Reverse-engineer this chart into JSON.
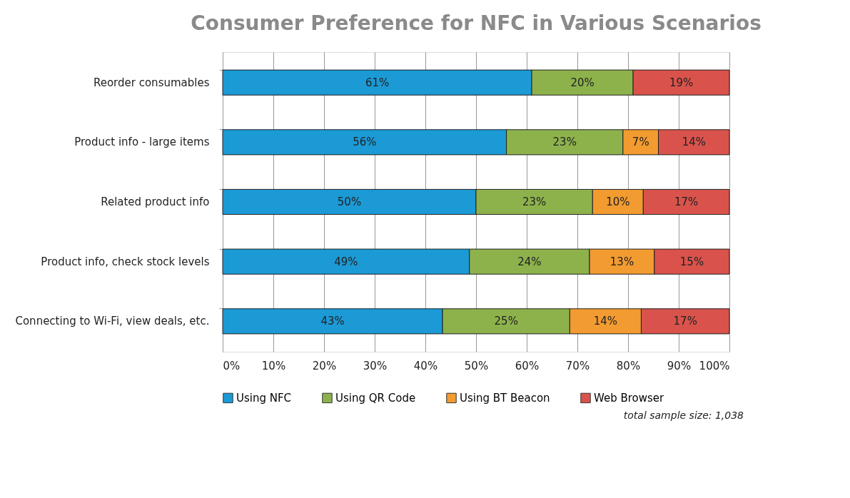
{
  "chart_data": {
    "type": "bar",
    "orientation": "horizontal",
    "stacked": true,
    "title": "Consumer Preference for NFC in Various Scenarios",
    "categories": [
      "Reorder consumables",
      "Product info - large items",
      "Related product info",
      "Product info, check stock levels",
      "Connecting to Wi-Fi, view deals, etc."
    ],
    "series": [
      {
        "name": "Using NFC",
        "color": "#1b9ad6",
        "values": [
          61,
          56,
          50,
          48.7,
          43.4
        ],
        "value_labels": [
          "61%",
          "56%",
          "50%",
          "49%",
          "43%"
        ]
      },
      {
        "name": "Using QR Code",
        "color": "#8db24c",
        "values": [
          20,
          23,
          23,
          23.7,
          25.1
        ],
        "value_labels": [
          "20%",
          "23%",
          "23%",
          "24%",
          "25%"
        ]
      },
      {
        "name": "Using BT Beacon",
        "color": "#f29b30",
        "values": [
          null,
          7,
          10,
          12.8,
          14.1
        ],
        "value_labels": [
          null,
          "7%",
          "10%",
          "13%",
          "14%"
        ]
      },
      {
        "name": "Web Browser",
        "color": "#d9534c",
        "values": [
          19,
          14,
          17,
          14.8,
          17.4
        ],
        "value_labels": [
          "19%",
          "14%",
          "17%",
          "15%",
          "17%"
        ]
      }
    ],
    "xlim": [
      0,
      100
    ],
    "xticks": [
      {
        "value": 0,
        "label": "0%"
      },
      {
        "value": 10,
        "label": "10%"
      },
      {
        "value": 20,
        "label": "20%"
      },
      {
        "value": 30,
        "label": "30%"
      },
      {
        "value": 40,
        "label": "40%"
      },
      {
        "value": 50,
        "label": "50%"
      },
      {
        "value": 60,
        "label": "60%"
      },
      {
        "value": 70,
        "label": "70%"
      },
      {
        "value": 80,
        "label": "80%"
      },
      {
        "value": 90,
        "label": "90%"
      },
      {
        "value": 100,
        "label": "100%"
      }
    ],
    "grid": "x",
    "legend": "bottom",
    "annotations": [
      "total sample size: 1,038"
    ]
  }
}
